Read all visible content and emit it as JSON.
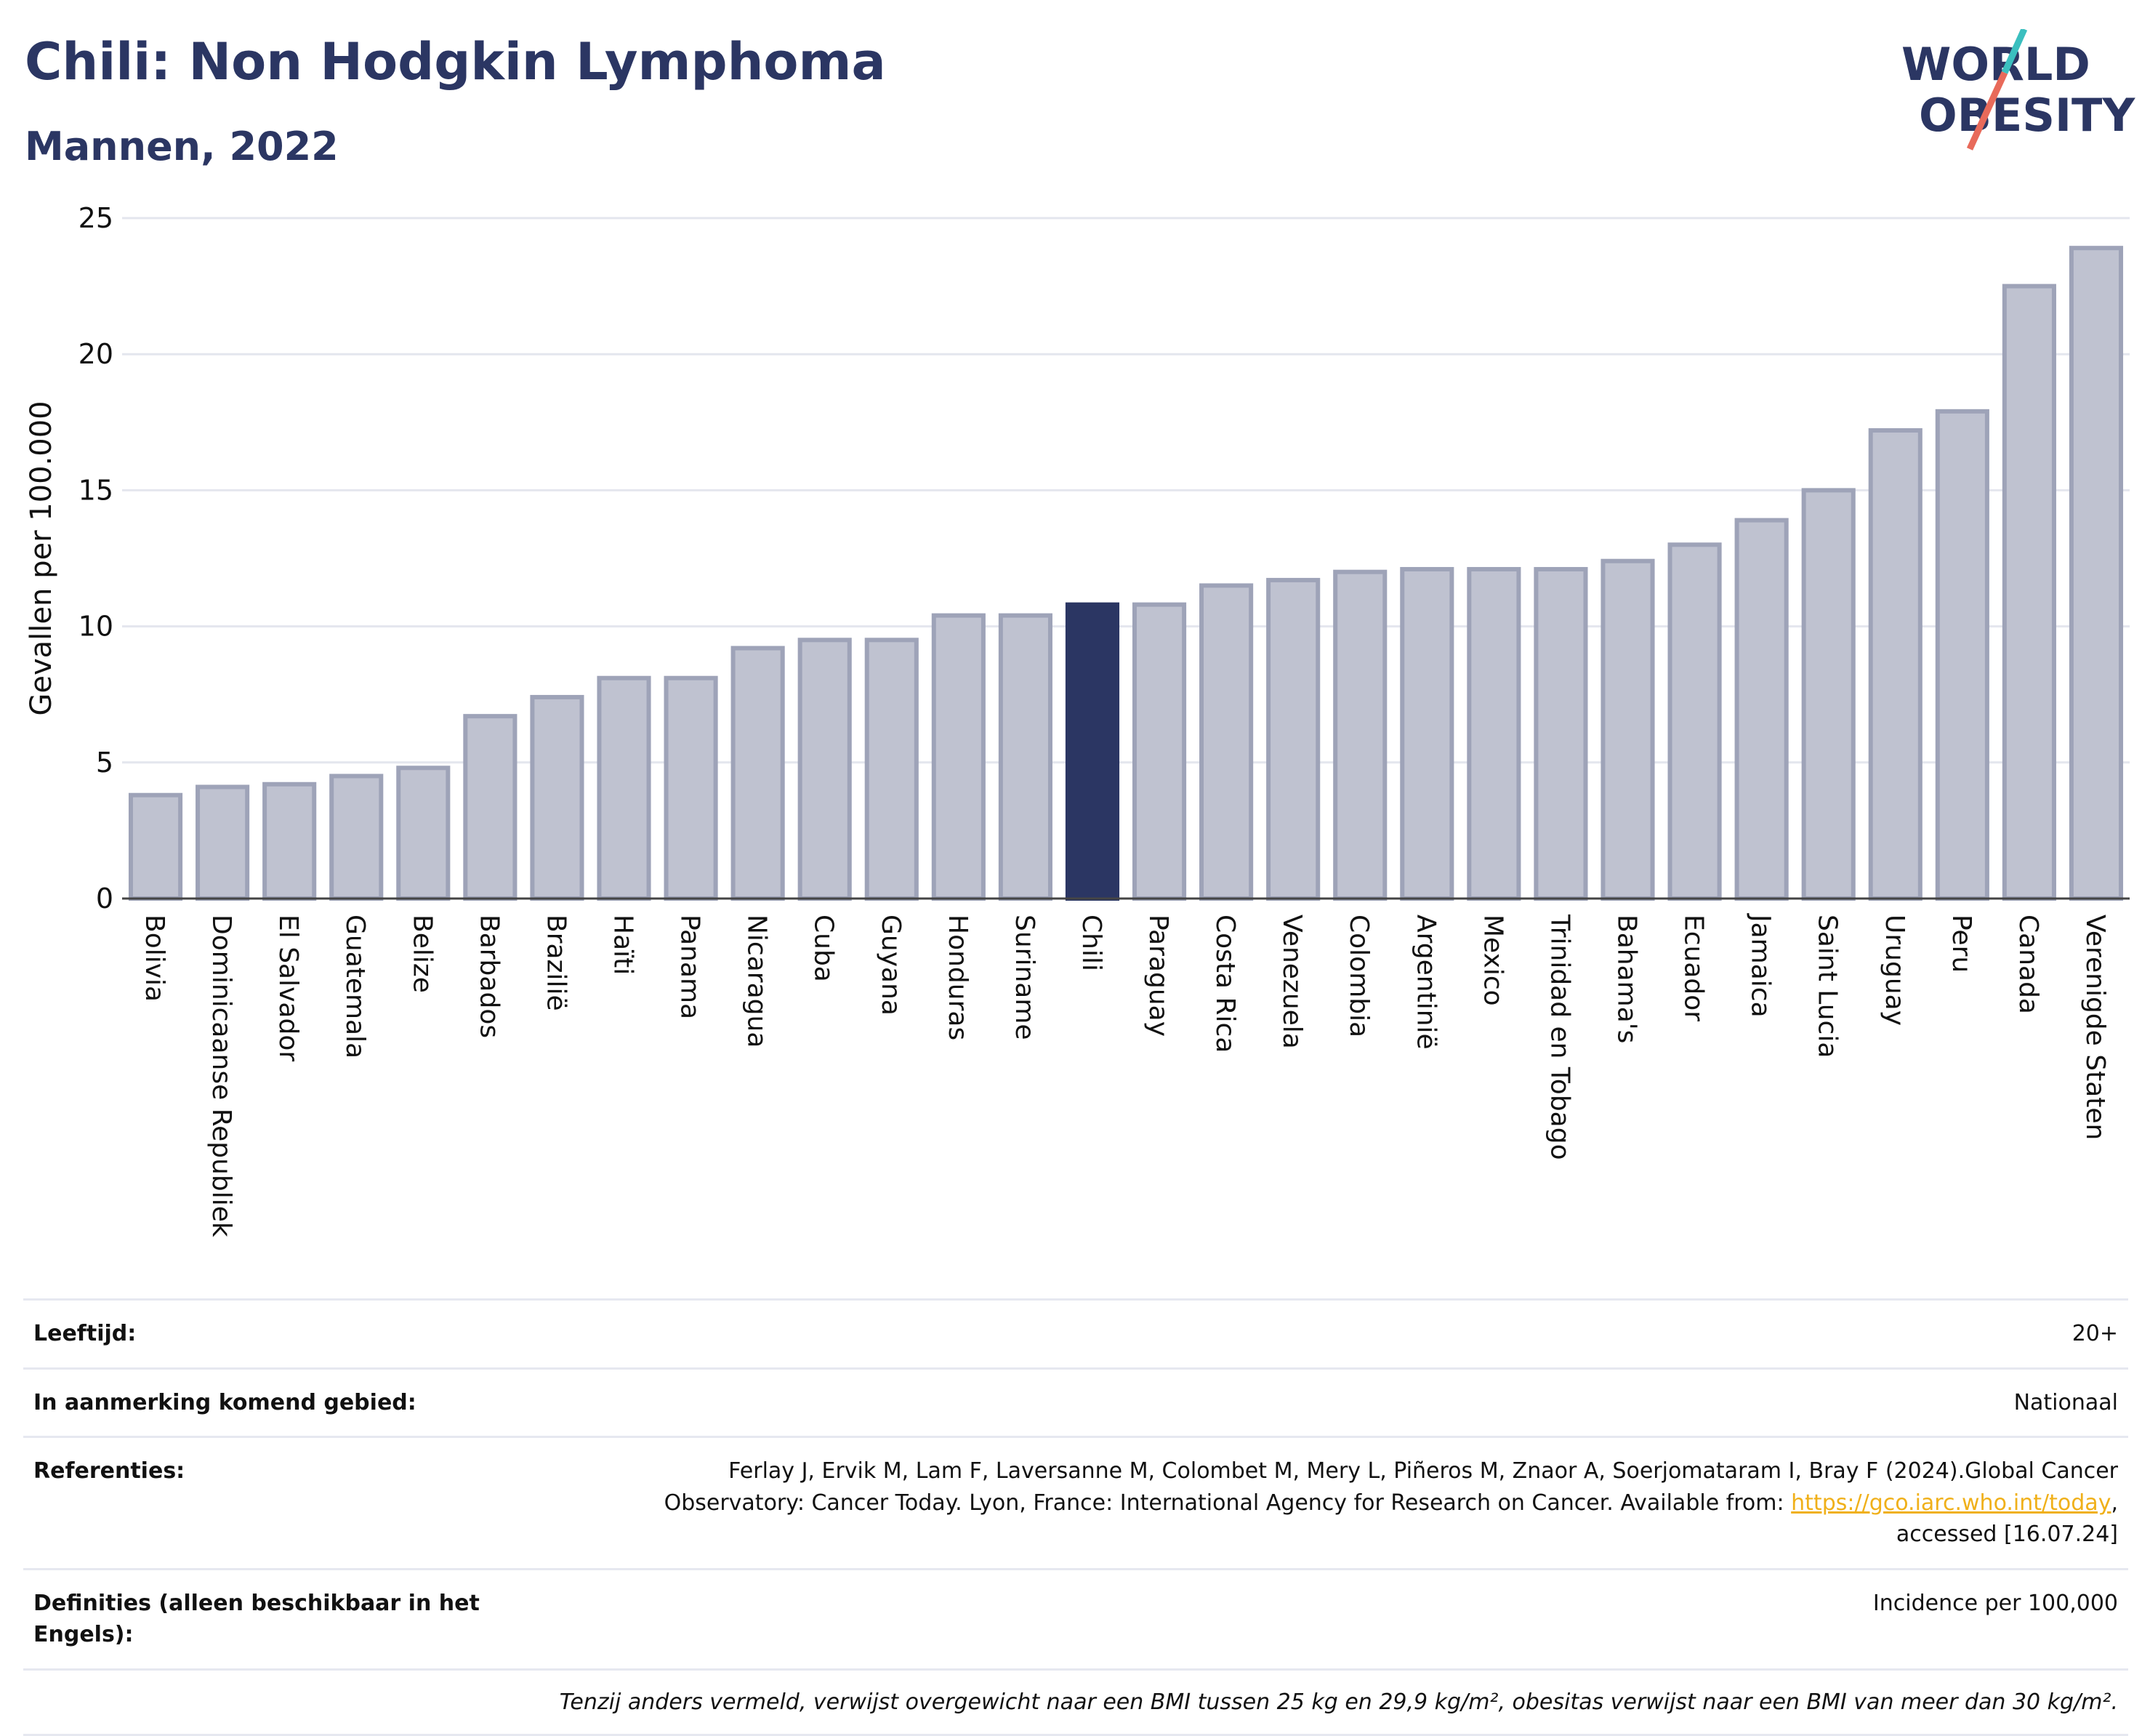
{
  "header": {
    "title": "Chili: Non Hodgkin Lymphoma",
    "subtitle": "Mannen, 2022"
  },
  "logo": {
    "line1": "WORLD",
    "line2": "OBESITY",
    "colors": [
      "#2b3663",
      "#e86a5a",
      "#3bbfbf"
    ]
  },
  "colors": {
    "bar": "#bfc2d0",
    "bar_border": "#9ea3b8",
    "highlight": "#2b3663"
  },
  "chart_data": {
    "type": "bar",
    "ylabel": "Gevallen per 100.000",
    "ylim": [
      0,
      25
    ],
    "yticks": [
      0,
      5,
      10,
      15,
      20,
      25
    ],
    "grid": true,
    "highlight": "Chili",
    "categories": [
      "Bolivia",
      "Dominicaanse Republiek",
      "El Salvador",
      "Guatemala",
      "Belize",
      "Barbados",
      "Brazilië",
      "Haïti",
      "Panama",
      "Nicaragua",
      "Cuba",
      "Guyana",
      "Honduras",
      "Suriname",
      "Chili",
      "Paraguay",
      "Costa Rica",
      "Venezuela",
      "Colombia",
      "Argentinië",
      "Mexico",
      "Trinidad en Tobago",
      "Bahama's",
      "Ecuador",
      "Jamaica",
      "Saint Lucia",
      "Uruguay",
      "Peru",
      "Canada",
      "Verenigde Staten"
    ],
    "values": [
      3.8,
      4.1,
      4.2,
      4.5,
      4.8,
      6.7,
      7.4,
      8.1,
      8.1,
      9.2,
      9.5,
      9.5,
      10.4,
      10.4,
      10.8,
      10.8,
      11.5,
      11.7,
      12.0,
      12.1,
      12.1,
      12.1,
      12.4,
      13.0,
      13.9,
      15.0,
      17.2,
      17.9,
      22.5,
      23.9
    ]
  },
  "info": {
    "age_label": "Leeftijd:",
    "age_value": "20+",
    "area_label": "In aanmerking komend gebied:",
    "area_value": "Nationaal",
    "ref_label": "Referenties:",
    "ref_text1": "Ferlay J, Ervik M, Lam F, Laversanne M, Colombet M, Mery L, Piñeros M, Znaor A, Soerjomataram I, Bray F (2024).Global Cancer",
    "ref_text2": "Observatory: Cancer Today. Lyon, France: International Agency for Research on Cancer. Available from: ",
    "ref_link": "https://gco.iarc.who.int/today",
    "ref_text3": "accessed [16.07.24]",
    "def_label": "Definities (alleen beschikbaar in het Engels):",
    "def_value": "Incidence per 100,000",
    "note": "Tenzij anders vermeld, verwijst overgewicht naar een BMI tussen 25 kg en 29,9 kg/m², obesitas verwijst naar een BMI van meer dan 30 kg/m²."
  }
}
